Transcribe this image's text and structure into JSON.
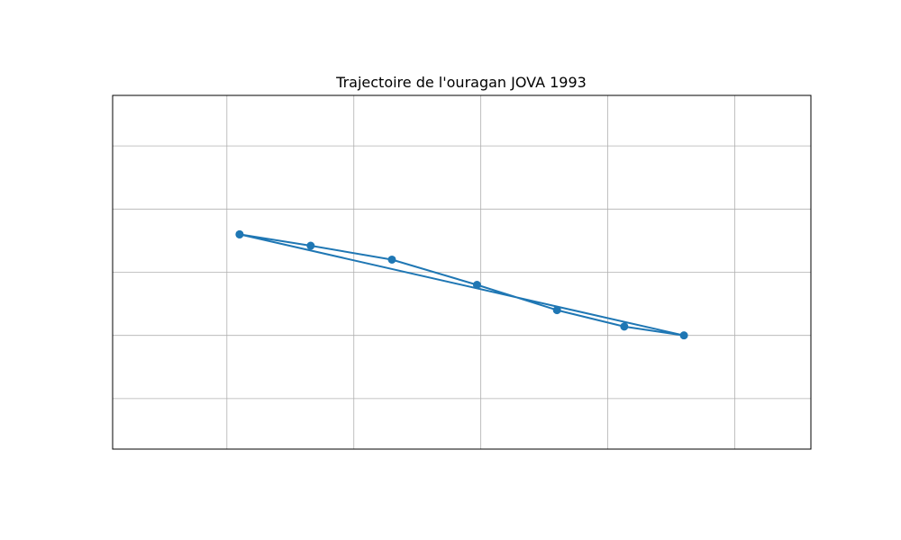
{
  "chart_data": {
    "type": "line",
    "title": "Trajectoire de l'ouragan JOVA 1993",
    "xlabel": "",
    "ylabel": "",
    "grid": true,
    "legend": "none",
    "xlim": [
      -0.9,
      4.6
    ],
    "ylim": [
      -1.4,
      1.4
    ],
    "series": [
      {
        "x": [
          0.1,
          0.66,
          1.3,
          1.97,
          2.6,
          3.13,
          3.6,
          0.1
        ],
        "y": [
          0.3,
          0.21,
          0.1,
          -0.1,
          -0.3,
          -0.43,
          -0.5,
          0.3
        ]
      }
    ],
    "colors": {
      "line": "#1f77b4",
      "grid": "#b0b0b0",
      "frame": "#000000"
    }
  }
}
